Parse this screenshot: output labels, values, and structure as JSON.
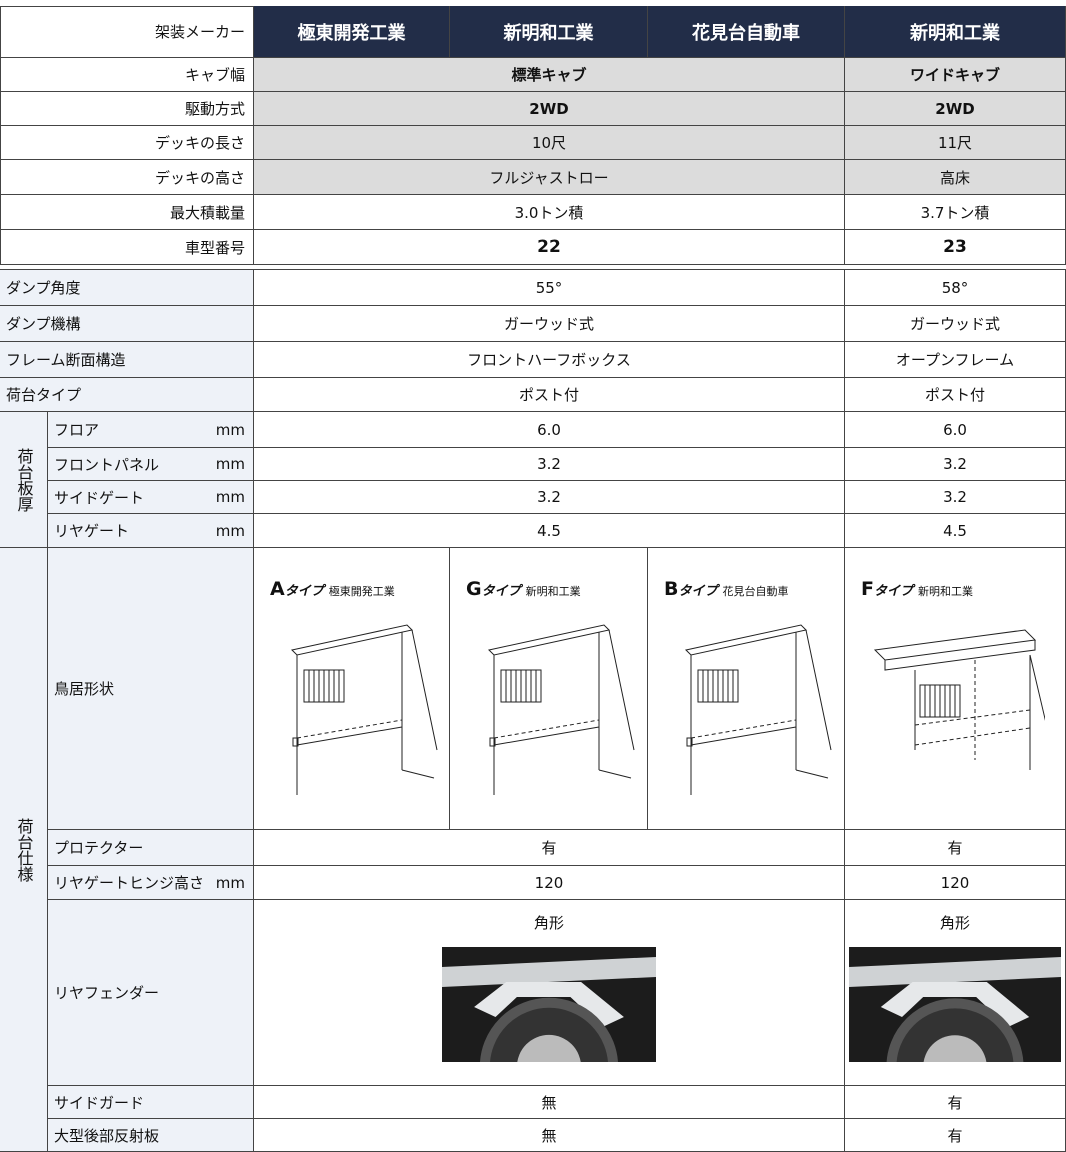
{
  "header": {
    "label": "架装メーカー",
    "makers": [
      "極東開発工業",
      "新明和工業",
      "花見台自動車",
      "新明和工業"
    ]
  },
  "spec_rows": [
    {
      "label": "キャブ幅",
      "standard": "標準キャブ",
      "wide": "ワイドキャブ"
    },
    {
      "label": "駆動方式",
      "standard": "2WD",
      "wide": "2WD"
    },
    {
      "label": "デッキの長さ",
      "standard": "10尺",
      "wide": "11尺"
    },
    {
      "label": "デッキの高さ",
      "standard": "フルジャストロー",
      "wide": "高床"
    },
    {
      "label": "最大積載量",
      "standard": "3.0トン積",
      "wide": "3.7トン積"
    },
    {
      "label": "車型番号",
      "standard": "22",
      "wide": "23"
    }
  ],
  "body_rows": [
    {
      "label": "ダンプ角度",
      "standard": "55°",
      "wide": "58°"
    },
    {
      "label": "ダンプ機構",
      "standard": "ガーウッド式",
      "wide": "ガーウッド式"
    },
    {
      "label": "フレーム断面構造",
      "standard": "フロントハーフボックス",
      "wide": "オープンフレーム"
    },
    {
      "label": "荷台タイプ",
      "standard": "ポスト付",
      "wide": "ポスト付"
    }
  ],
  "thickness": {
    "group": "荷台板厚",
    "rows": [
      {
        "label": "フロア",
        "unit": "mm",
        "standard": "6.0",
        "wide": "6.0"
      },
      {
        "label": "フロントパネル",
        "unit": "mm",
        "standard": "3.2",
        "wide": "3.2"
      },
      {
        "label": "サイドゲート",
        "unit": "mm",
        "standard": "3.2",
        "wide": "3.2"
      },
      {
        "label": "リヤゲート",
        "unit": "mm",
        "standard": "4.5",
        "wide": "4.5"
      }
    ]
  },
  "equipment": {
    "group": "荷台仕様",
    "torii": {
      "label": "鳥居形状",
      "types": [
        {
          "letter": "A",
          "suffix": "タイプ",
          "maker": "極東開発工業"
        },
        {
          "letter": "G",
          "suffix": "タイプ",
          "maker": "新明和工業"
        },
        {
          "letter": "B",
          "suffix": "タイプ",
          "maker": "花見台自動車"
        },
        {
          "letter": "F",
          "suffix": "タイプ",
          "maker": "新明和工業"
        }
      ]
    },
    "rows": [
      {
        "label": "プロテクター",
        "standard": "有",
        "wide": "有"
      },
      {
        "label": "リヤゲートヒンジ高さ",
        "unit": "mm",
        "standard": "120",
        "wide": "120"
      },
      {
        "label": "リヤフェンダー",
        "standard": "角形",
        "wide": "角形"
      },
      {
        "label": "サイドガード",
        "standard": "無",
        "wide": "有"
      },
      {
        "label": "大型後部反射板",
        "standard": "無",
        "wide": "有"
      }
    ]
  }
}
